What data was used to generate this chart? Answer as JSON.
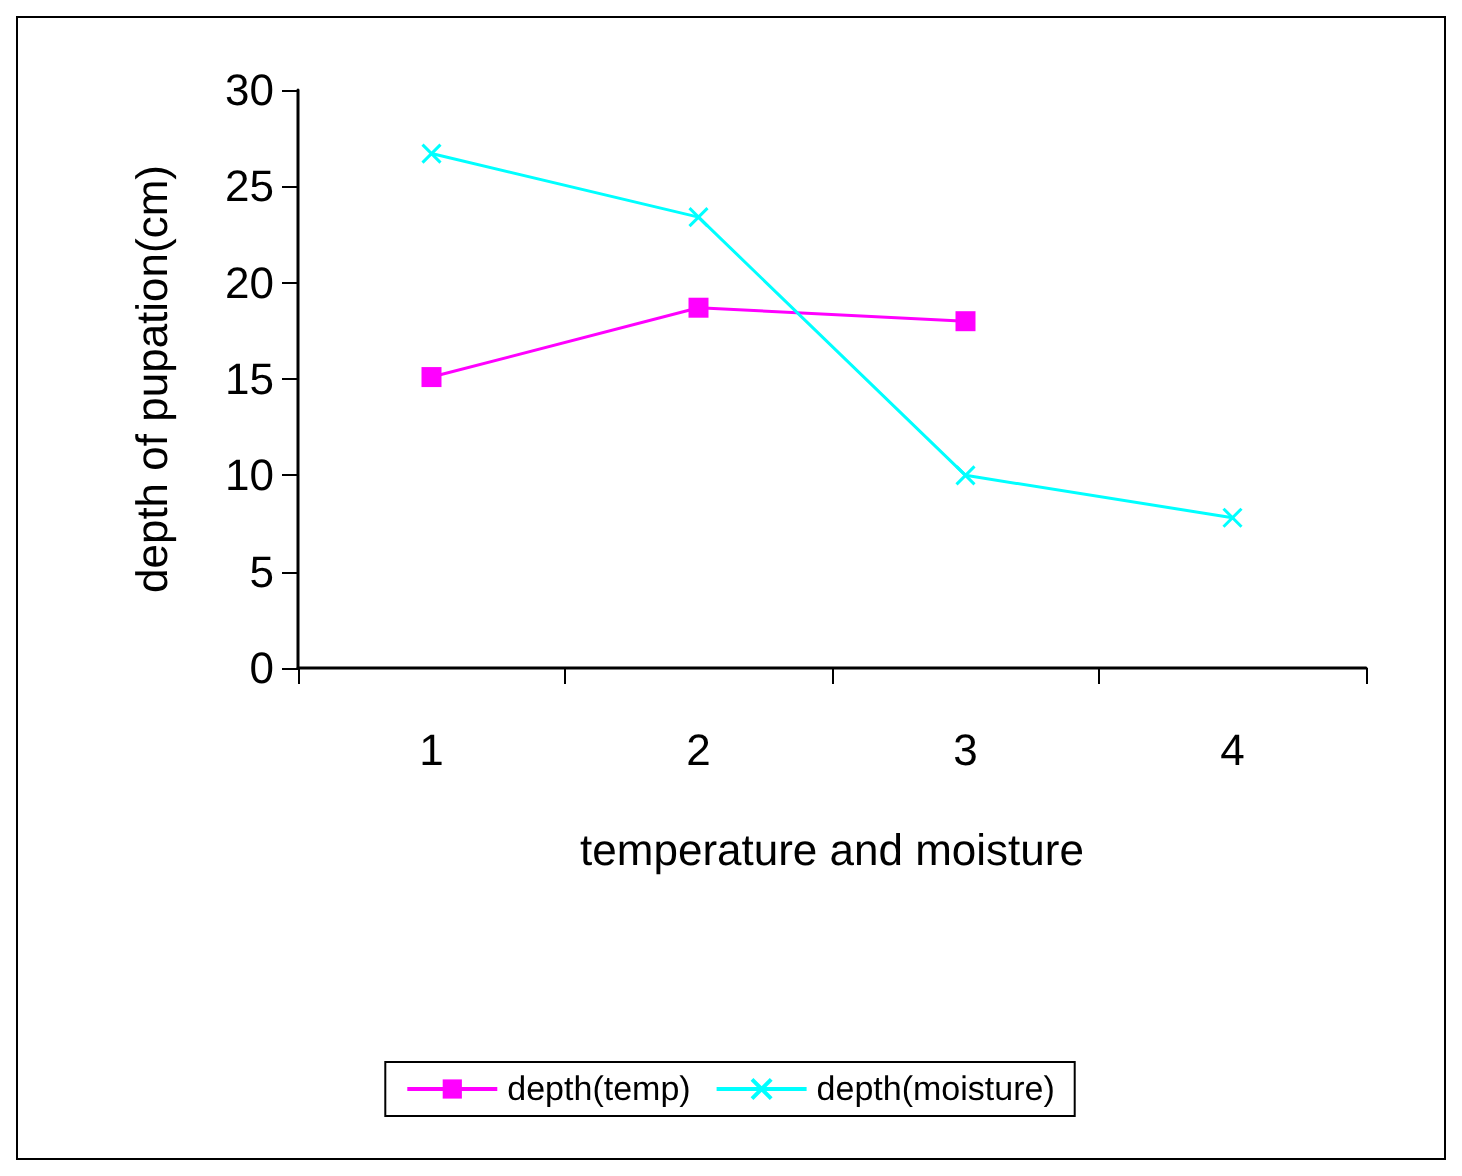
{
  "chart_data": {
    "type": "line",
    "xlabel": "temperature and moisture",
    "ylabel": "depth of pupation(cm)",
    "categories": [
      "1",
      "2",
      "3",
      "4"
    ],
    "series": [
      {
        "name": "depth(temp)",
        "color": "#ff00ff",
        "marker": "square",
        "values": [
          15.1,
          18.7,
          18.0,
          null
        ]
      },
      {
        "name": "depth(moisture)",
        "color": "#00ffff",
        "marker": "cross",
        "values": [
          26.7,
          23.4,
          10,
          7.8
        ]
      }
    ],
    "ylim": [
      0,
      30
    ],
    "yticks": [
      0,
      5,
      10,
      15,
      20,
      25,
      30
    ],
    "grid": false,
    "legend": "bottom"
  }
}
